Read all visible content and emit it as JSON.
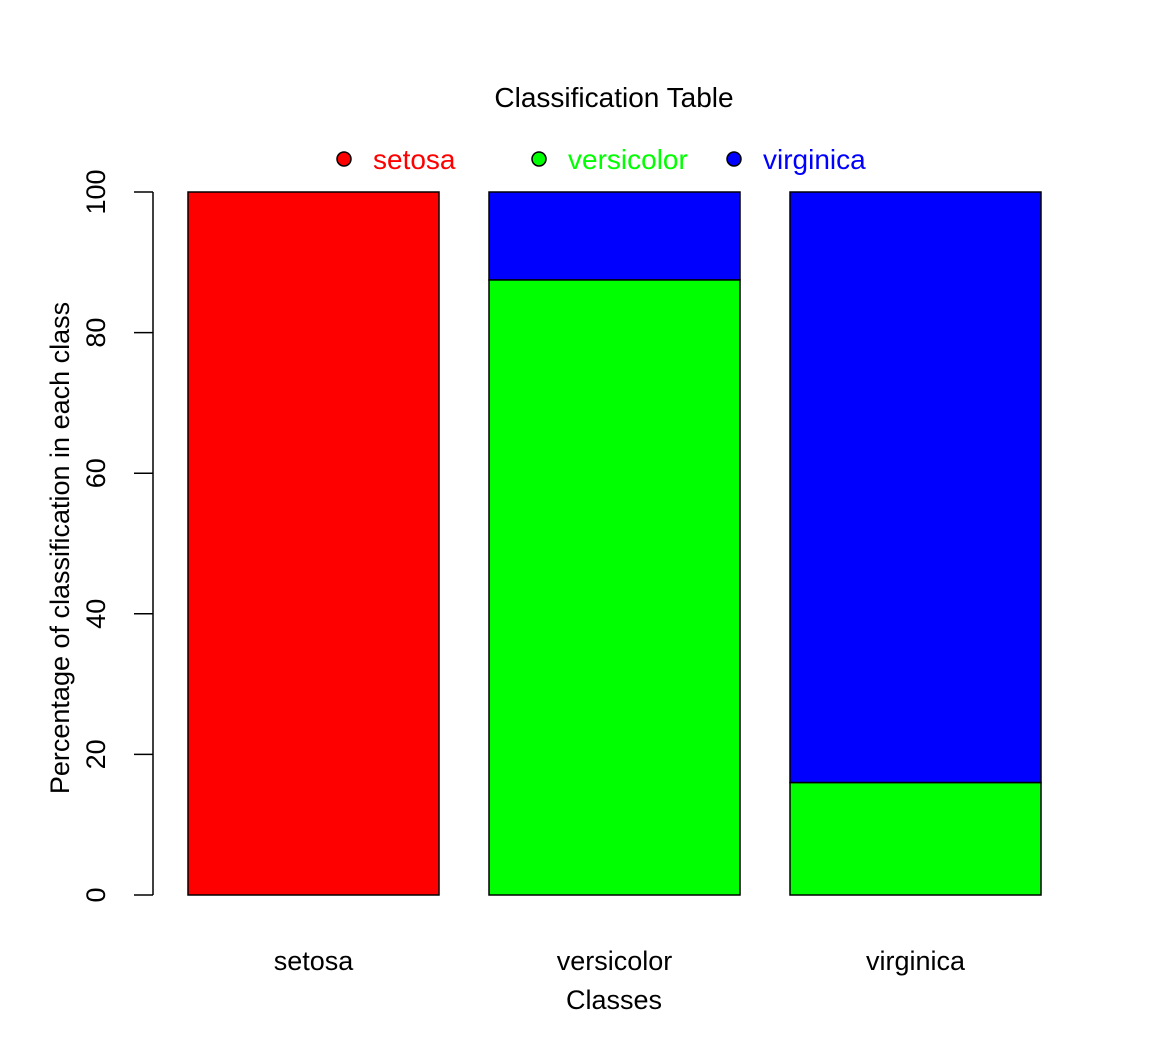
{
  "chart_data": {
    "type": "bar",
    "stacked": true,
    "title": "Classification Table",
    "xlabel": "Classes",
    "ylabel": "Percentage of classification in each class",
    "categories": [
      "setosa",
      "versicolor",
      "virginica"
    ],
    "ylim": [
      0,
      100
    ],
    "yticks": [
      0,
      20,
      40,
      60,
      80,
      100
    ],
    "grid": false,
    "legend_position": "top",
    "series": [
      {
        "name": "setosa",
        "color": "#ff0000",
        "values": [
          100,
          0,
          0
        ]
      },
      {
        "name": "versicolor",
        "color": "#00ff00",
        "values": [
          0,
          87.5,
          16
        ]
      },
      {
        "name": "virginica",
        "color": "#0000ff",
        "values": [
          0,
          12.5,
          84
        ]
      }
    ]
  }
}
